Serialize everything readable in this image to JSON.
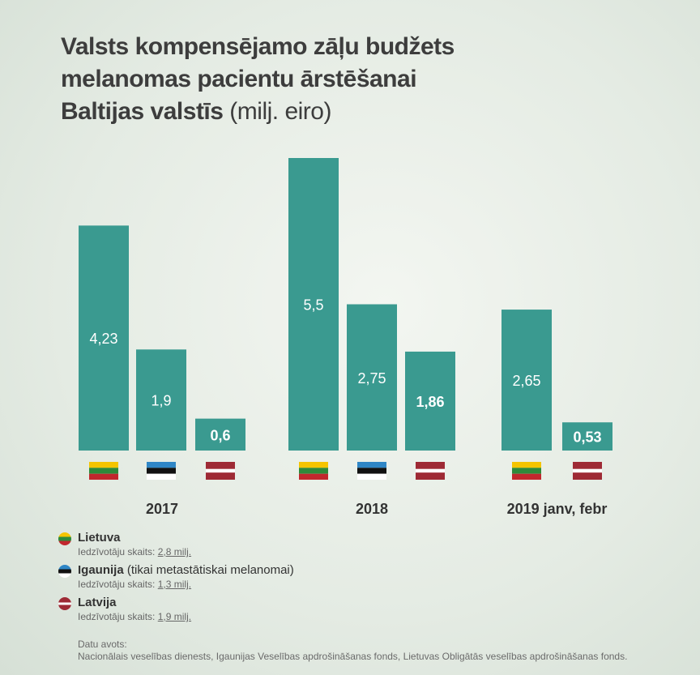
{
  "title": {
    "line1": "Valsts kompensējamo zāļu budžets",
    "line2": "melanomas pacientu ārstēšanai",
    "line3_bold": "Baltijas valstīs",
    "line3_unit": "(milj. eiro)"
  },
  "colors": {
    "bar": "#3a9a90",
    "lt": [
      "#f5c400",
      "#2e8a3b",
      "#c1272d"
    ],
    "ee": [
      "#2f86c6",
      "#111111",
      "#ffffff"
    ],
    "lv": [
      "#9e2a35",
      "#ffffff",
      "#9e2a35"
    ]
  },
  "chart_data": {
    "type": "bar",
    "groups": [
      {
        "label": "2017",
        "bars": [
          {
            "country": "lt",
            "value": 4.23,
            "label": "4,23"
          },
          {
            "country": "ee",
            "value": 1.9,
            "label": "1,9"
          },
          {
            "country": "lv",
            "value": 0.6,
            "label": "0,6"
          }
        ]
      },
      {
        "label": "2018",
        "bars": [
          {
            "country": "lt",
            "value": 5.5,
            "label": "5,5"
          },
          {
            "country": "ee",
            "value": 2.75,
            "label": "2,75"
          },
          {
            "country": "lv",
            "value": 1.86,
            "label": "1,86"
          }
        ]
      },
      {
        "label": "2019 janv, febr",
        "bars": [
          {
            "country": "lt",
            "value": 2.65,
            "label": "2,65"
          },
          {
            "country": "lv",
            "value": 0.53,
            "label": "0,53"
          }
        ]
      }
    ],
    "ylim": [
      0,
      5.5
    ],
    "grid": false
  },
  "legend": [
    {
      "country": "lt",
      "name": "Lietuva",
      "note": "",
      "pop_prefix": "Iedzīvotāju skaits:",
      "pop_value": "2,8 milj."
    },
    {
      "country": "ee",
      "name": "Igaunija",
      "note": "(tikai metastātiskai melanomai)",
      "pop_prefix": "Iedzīvotāju skaits:",
      "pop_value": "1,3 milj."
    },
    {
      "country": "lv",
      "name": "Latvija",
      "note": "",
      "pop_prefix": "Iedzīvotāju skaits:",
      "pop_value": "1,9 milj."
    }
  ],
  "source": {
    "heading": "Datu avots:",
    "text": "Nacionālais veselības dienests, Igaunijas Veselības apdrošināšanas fonds, Lietuvas Obligātās veselības apdrošināšanas fonds."
  }
}
